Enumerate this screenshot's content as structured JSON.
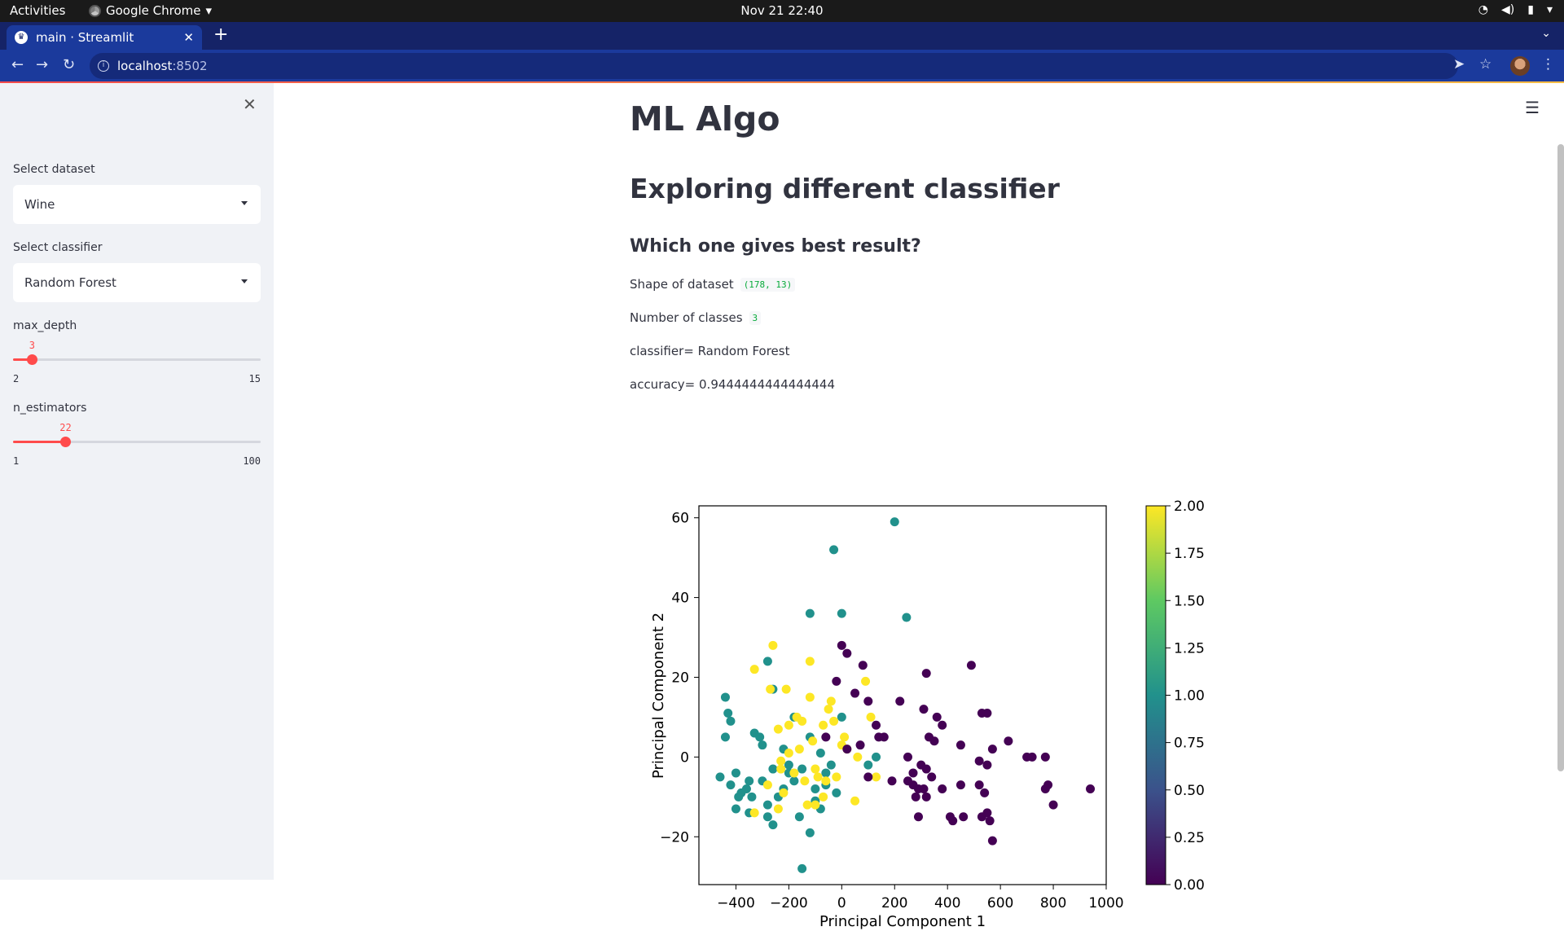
{
  "os_bar": {
    "activities": "Activities",
    "app_name": "Google Chrome",
    "clock": "Nov 21  22:40"
  },
  "browser": {
    "tab_title": "main · Streamlit",
    "url_host": "localhost",
    "url_port": ":8502"
  },
  "sidebar": {
    "dataset_label": "Select dataset",
    "dataset_value": "Wine",
    "classifier_label": "Select classifier",
    "classifier_value": "Random Forest",
    "max_depth": {
      "label": "max_depth",
      "value": "3",
      "min": "2",
      "max": "15"
    },
    "n_estimators": {
      "label": "n_estimators",
      "value": "22",
      "min": "1",
      "max": "100"
    }
  },
  "main": {
    "title": "ML Algo",
    "subtitle": "Exploring different classifier",
    "question": "Which one gives best result?",
    "shape_label": "Shape of dataset",
    "shape_value": "(178, 13)",
    "classes_label": "Number of classes",
    "classes_value": "3",
    "classifier_line": "classifier= Random Forest",
    "accuracy_line": "accuracy= 0.9444444444444444"
  },
  "chart_data": {
    "type": "scatter",
    "xlabel": "Principal Component 1",
    "ylabel": "Principal Component 2",
    "xlim": [
      -540,
      1000
    ],
    "ylim": [
      -32,
      63
    ],
    "xticks": [
      "−400",
      "−200",
      "0",
      "200",
      "400",
      "600",
      "800",
      "1000"
    ],
    "yticks": [
      "−20",
      "0",
      "20",
      "40",
      "60"
    ],
    "colorbar": {
      "cmap": "viridis",
      "range": [
        0,
        2
      ],
      "ticks": [
        "0.00",
        "0.25",
        "0.50",
        "0.75",
        "1.00",
        "1.25",
        "1.50",
        "1.75",
        "2.00"
      ]
    },
    "grid": false,
    "points": [
      [
        200,
        59,
        1
      ],
      [
        -30,
        52,
        1
      ],
      [
        0,
        36,
        1
      ],
      [
        -120,
        36,
        1
      ],
      [
        245,
        35,
        1
      ],
      [
        -280,
        24,
        1
      ],
      [
        -440,
        15,
        1
      ],
      [
        -430,
        11,
        1
      ],
      [
        -420,
        9,
        1
      ],
      [
        -440,
        5,
        1
      ],
      [
        -400,
        -4,
        1
      ],
      [
        -460,
        -5,
        1
      ],
      [
        -420,
        -7,
        1
      ],
      [
        -360,
        -8,
        1
      ],
      [
        -340,
        -10,
        1
      ],
      [
        -300,
        -6,
        1
      ],
      [
        -280,
        -12,
        1
      ],
      [
        -260,
        -17,
        1
      ],
      [
        -220,
        -8,
        1
      ],
      [
        -200,
        -2,
        1
      ],
      [
        -180,
        -6,
        1
      ],
      [
        -160,
        -15,
        1
      ],
      [
        -120,
        -19,
        1
      ],
      [
        -100,
        -11,
        1
      ],
      [
        -80,
        -13,
        1
      ],
      [
        -60,
        -4,
        1
      ],
      [
        -40,
        -2,
        1
      ],
      [
        -20,
        -9,
        1
      ],
      [
        0,
        10,
        1
      ],
      [
        -120,
        5,
        1
      ],
      [
        -180,
        10,
        1
      ],
      [
        -220,
        2,
        1
      ],
      [
        -260,
        -3,
        1
      ],
      [
        -300,
        3,
        1
      ],
      [
        -330,
        6,
        1
      ],
      [
        -380,
        -9,
        1
      ],
      [
        -400,
        -13,
        1
      ],
      [
        -350,
        -14,
        1
      ],
      [
        -280,
        -15,
        1
      ],
      [
        -240,
        -10,
        1
      ],
      [
        -150,
        -28,
        1
      ],
      [
        -80,
        1,
        1
      ],
      [
        -60,
        -7,
        1
      ],
      [
        100,
        -2,
        1
      ],
      [
        130,
        0,
        1
      ],
      [
        -200,
        -4,
        1
      ],
      [
        -100,
        -8,
        1
      ],
      [
        -150,
        -3,
        1
      ],
      [
        -260,
        17,
        1
      ],
      [
        -310,
        5,
        1
      ],
      [
        -350,
        -6,
        1
      ],
      [
        -390,
        -10,
        1
      ],
      [
        -260,
        28,
        2
      ],
      [
        -120,
        24,
        2
      ],
      [
        -330,
        22,
        2
      ],
      [
        -270,
        17,
        2
      ],
      [
        -210,
        17,
        2
      ],
      [
        -120,
        15,
        2
      ],
      [
        -50,
        12,
        2
      ],
      [
        90,
        19,
        2
      ],
      [
        -170,
        10,
        2
      ],
      [
        -200,
        8,
        2
      ],
      [
        -240,
        7,
        2
      ],
      [
        -150,
        9,
        2
      ],
      [
        -70,
        8,
        2
      ],
      [
        -30,
        9,
        2
      ],
      [
        10,
        5,
        2
      ],
      [
        -110,
        4,
        2
      ],
      [
        -160,
        2,
        2
      ],
      [
        -200,
        1,
        2
      ],
      [
        -230,
        -1,
        2
      ],
      [
        -180,
        -4,
        2
      ],
      [
        -140,
        -6,
        2
      ],
      [
        -90,
        -5,
        2
      ],
      [
        -60,
        -6,
        2
      ],
      [
        -20,
        -5,
        2
      ],
      [
        20,
        2,
        2
      ],
      [
        60,
        0,
        2
      ],
      [
        130,
        -5,
        2
      ],
      [
        50,
        -11,
        2
      ],
      [
        -70,
        -10,
        2
      ],
      [
        -130,
        -12,
        2
      ],
      [
        -220,
        -9,
        2
      ],
      [
        -280,
        -7,
        2
      ],
      [
        -330,
        -14,
        2
      ],
      [
        -240,
        -13,
        2
      ],
      [
        -100,
        -3,
        2
      ],
      [
        0,
        3,
        2
      ],
      [
        -40,
        14,
        2
      ],
      [
        110,
        10,
        2
      ],
      [
        -230,
        -3,
        2
      ],
      [
        -100,
        -12,
        2
      ],
      [
        0,
        28,
        0
      ],
      [
        20,
        26,
        0
      ],
      [
        80,
        23,
        0
      ],
      [
        320,
        21,
        0
      ],
      [
        490,
        23,
        0
      ],
      [
        -20,
        19,
        0
      ],
      [
        50,
        16,
        0
      ],
      [
        100,
        14,
        0
      ],
      [
        220,
        14,
        0
      ],
      [
        310,
        12,
        0
      ],
      [
        360,
        10,
        0
      ],
      [
        380,
        8,
        0
      ],
      [
        530,
        11,
        0
      ],
      [
        550,
        11,
        0
      ],
      [
        130,
        8,
        0
      ],
      [
        140,
        5,
        0
      ],
      [
        160,
        5,
        0
      ],
      [
        330,
        5,
        0
      ],
      [
        350,
        4,
        0
      ],
      [
        450,
        3,
        0
      ],
      [
        570,
        2,
        0
      ],
      [
        630,
        4,
        0
      ],
      [
        70,
        3,
        0
      ],
      [
        -60,
        5,
        0
      ],
      [
        20,
        2,
        0
      ],
      [
        250,
        0,
        0
      ],
      [
        300,
        -2,
        0
      ],
      [
        320,
        -3,
        0
      ],
      [
        340,
        -5,
        0
      ],
      [
        270,
        -4,
        0
      ],
      [
        190,
        -6,
        0
      ],
      [
        270,
        -7,
        0
      ],
      [
        290,
        -8,
        0
      ],
      [
        310,
        -8,
        0
      ],
      [
        380,
        -8,
        0
      ],
      [
        450,
        -7,
        0
      ],
      [
        520,
        -1,
        0
      ],
      [
        550,
        -2,
        0
      ],
      [
        700,
        0,
        0
      ],
      [
        720,
        0,
        0
      ],
      [
        770,
        0,
        0
      ],
      [
        780,
        -7,
        0
      ],
      [
        770,
        -8,
        0
      ],
      [
        800,
        -12,
        0
      ],
      [
        940,
        -8,
        0
      ],
      [
        280,
        -10,
        0
      ],
      [
        320,
        -10,
        0
      ],
      [
        520,
        -7,
        0
      ],
      [
        540,
        -9,
        0
      ],
      [
        290,
        -15,
        0
      ],
      [
        410,
        -15,
        0
      ],
      [
        420,
        -16,
        0
      ],
      [
        460,
        -15,
        0
      ],
      [
        530,
        -15,
        0
      ],
      [
        550,
        -14,
        0
      ],
      [
        560,
        -16,
        0
      ],
      [
        570,
        -21,
        0
      ],
      [
        250,
        -6,
        0
      ],
      [
        100,
        -5,
        0
      ]
    ]
  }
}
